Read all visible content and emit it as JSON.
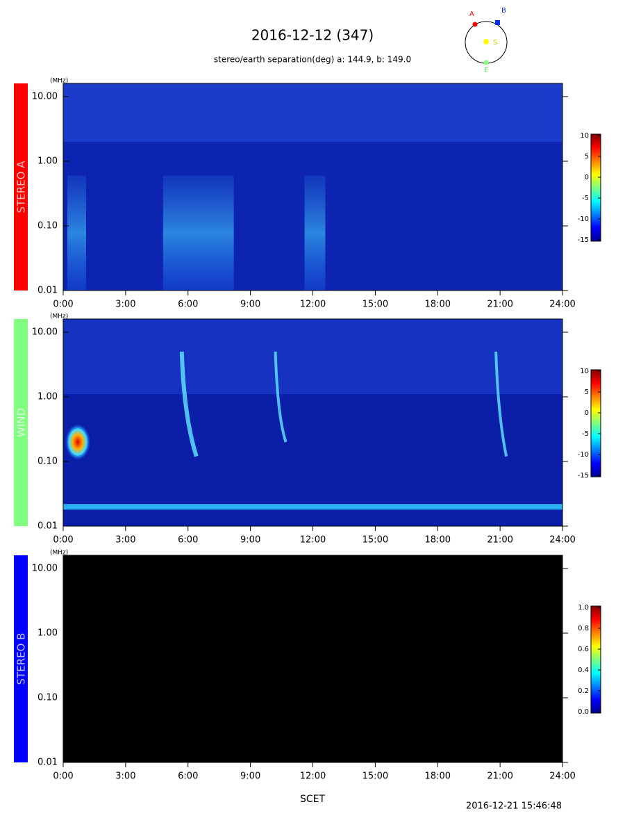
{
  "title": "2016-12-12 (347)",
  "subtitle": "stereo/earth separation(deg) a: 144.9, b: 149.0",
  "orbit_labels": [
    "A",
    "B",
    "S",
    "E"
  ],
  "x_label": "SCET",
  "timestamp": "2016-12-21 15:46:48",
  "chart_data": [
    {
      "type": "spectrogram",
      "name": "STEREO A",
      "color": "#ff0000",
      "background": "#0c24b0",
      "y_unit": "(MHz)",
      "log_y": true,
      "ylim": [
        0.01,
        16
      ],
      "yticks": [
        {
          "value": 0.01,
          "label": "0.01"
        },
        {
          "value": 0.1,
          "label": "0.10"
        },
        {
          "value": 1,
          "label": "1.00"
        },
        {
          "value": 10,
          "label": "10.00"
        }
      ],
      "xlim": [
        0,
        24
      ],
      "xticks": [
        {
          "value": 0,
          "label": "0:00"
        },
        {
          "value": 3,
          "label": "3:00"
        },
        {
          "value": 6,
          "label": "6:00"
        },
        {
          "value": 9,
          "label": "9:00"
        },
        {
          "value": 12,
          "label": "12:00"
        },
        {
          "value": 15,
          "label": "15:00"
        },
        {
          "value": 18,
          "label": "18:00"
        },
        {
          "value": 21,
          "label": "21:00"
        },
        {
          "value": 24,
          "label": "24:00"
        }
      ],
      "colorbar": {
        "clim": [
          -15,
          10
        ],
        "ticks": [
          -15,
          -10,
          -5,
          0,
          5,
          10
        ]
      }
    },
    {
      "type": "spectrogram",
      "name": "WIND",
      "color": "#80ff80",
      "background": "#0a1ea8",
      "y_unit": "(MHz)",
      "log_y": true,
      "ylim": [
        0.01,
        16
      ],
      "yticks": [
        {
          "value": 0.01,
          "label": "0.01"
        },
        {
          "value": 0.1,
          "label": "0.10"
        },
        {
          "value": 1,
          "label": "1.00"
        },
        {
          "value": 10,
          "label": "10.00"
        }
      ],
      "xlim": [
        0,
        24
      ],
      "xticks": [
        {
          "value": 0,
          "label": "0:00"
        },
        {
          "value": 3,
          "label": "3:00"
        },
        {
          "value": 6,
          "label": "6:00"
        },
        {
          "value": 9,
          "label": "9:00"
        },
        {
          "value": 12,
          "label": "12:00"
        },
        {
          "value": 15,
          "label": "15:00"
        },
        {
          "value": 18,
          "label": "18:00"
        },
        {
          "value": 21,
          "label": "21:00"
        },
        {
          "value": 24,
          "label": "24:00"
        }
      ],
      "colorbar": {
        "clim": [
          -15,
          10
        ],
        "ticks": [
          -15,
          -10,
          -5,
          0,
          5,
          10
        ]
      }
    },
    {
      "type": "spectrogram",
      "name": "STEREO B",
      "color": "#0000ff",
      "background": "#000000",
      "y_unit": "(MHz)",
      "log_y": true,
      "ylim": [
        0.01,
        16
      ],
      "yticks": [
        {
          "value": 0.01,
          "label": "0.01"
        },
        {
          "value": 0.1,
          "label": "0.10"
        },
        {
          "value": 1,
          "label": "1.00"
        },
        {
          "value": 10,
          "label": "10.00"
        }
      ],
      "xlim": [
        0,
        24
      ],
      "xticks": [
        {
          "value": 0,
          "label": "0:00"
        },
        {
          "value": 3,
          "label": "3:00"
        },
        {
          "value": 6,
          "label": "6:00"
        },
        {
          "value": 9,
          "label": "9:00"
        },
        {
          "value": 12,
          "label": "12:00"
        },
        {
          "value": 15,
          "label": "15:00"
        },
        {
          "value": 18,
          "label": "18:00"
        },
        {
          "value": 21,
          "label": "21:00"
        },
        {
          "value": 24,
          "label": "24:00"
        }
      ],
      "colorbar": {
        "clim": [
          0,
          1
        ],
        "ticks": [
          {
            "value": 0,
            "label": "0.0"
          },
          {
            "value": 0.2,
            "label": "0.2"
          },
          {
            "value": 0.4,
            "label": "0.4"
          },
          {
            "value": 0.6,
            "label": "0.6"
          },
          {
            "value": 0.8,
            "label": "0.8"
          },
          {
            "value": 1,
            "label": "1.0"
          }
        ]
      }
    }
  ]
}
